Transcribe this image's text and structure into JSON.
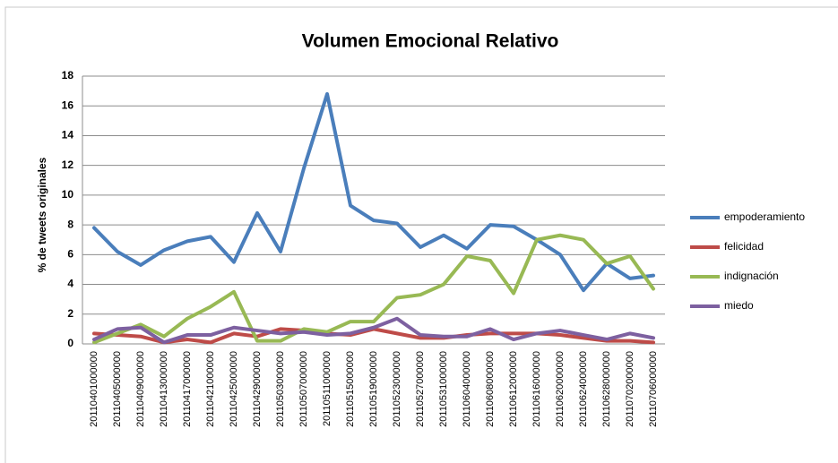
{
  "chart_data": {
    "type": "line",
    "title": "Volumen Emocional Relativo",
    "y_label": "% de tweets originales",
    "categories": [
      "20110401000000",
      "20110405000000",
      "20110409000000",
      "20110413000000",
      "20110417000000",
      "20110421000000",
      "20110425000000",
      "20110429000000",
      "20110503000000",
      "20110507000000",
      "20110511000000",
      "20110515000000",
      "20110519000000",
      "20110523000000",
      "20110527000000",
      "20110531000000",
      "20110604000000",
      "20110608000000",
      "20110612000000",
      "20110616000000",
      "20110620000000",
      "20110624000000",
      "20110628000000",
      "20110702000000",
      "20110706000000"
    ],
    "series": [
      {
        "name": "empoderamiento",
        "color": "#4a7ebb",
        "values": [
          7.8,
          6.2,
          5.3,
          6.3,
          6.9,
          7.2,
          5.5,
          8.8,
          6.2,
          11.8,
          16.8,
          9.3,
          8.3,
          8.1,
          6.5,
          7.3,
          6.4,
          8.0,
          7.9,
          7.0,
          6.0,
          3.6,
          5.4,
          4.4,
          4.6
        ]
      },
      {
        "name": "felicidad",
        "color": "#be4b48",
        "values": [
          0.7,
          0.6,
          0.5,
          0.1,
          0.3,
          0.1,
          0.7,
          0.5,
          1.0,
          0.9,
          0.7,
          0.6,
          1.0,
          0.7,
          0.4,
          0.4,
          0.6,
          0.7,
          0.7,
          0.7,
          0.6,
          0.4,
          0.2,
          0.2,
          0.1
        ]
      },
      {
        "name": "indignación",
        "color": "#98b954",
        "values": [
          0.1,
          0.7,
          1.3,
          0.5,
          1.7,
          2.5,
          3.5,
          0.2,
          0.2,
          1.0,
          0.8,
          1.5,
          1.5,
          3.1,
          3.3,
          4.0,
          5.9,
          5.6,
          3.4,
          7.0,
          7.3,
          7.0,
          5.4,
          5.9,
          3.7
        ]
      },
      {
        "name": "miedo",
        "color": "#7d60a0",
        "values": [
          0.3,
          1.0,
          1.1,
          0.1,
          0.6,
          0.6,
          1.1,
          0.9,
          0.7,
          0.8,
          0.6,
          0.7,
          1.1,
          1.7,
          0.6,
          0.5,
          0.5,
          1.0,
          0.3,
          0.7,
          0.9,
          0.6,
          0.3,
          0.7,
          0.4
        ]
      }
    ],
    "ylim": [
      0,
      18
    ],
    "yticks": [
      0,
      2,
      4,
      6,
      8,
      10,
      12,
      14,
      16,
      18
    ],
    "grid": true,
    "legend": "right"
  }
}
